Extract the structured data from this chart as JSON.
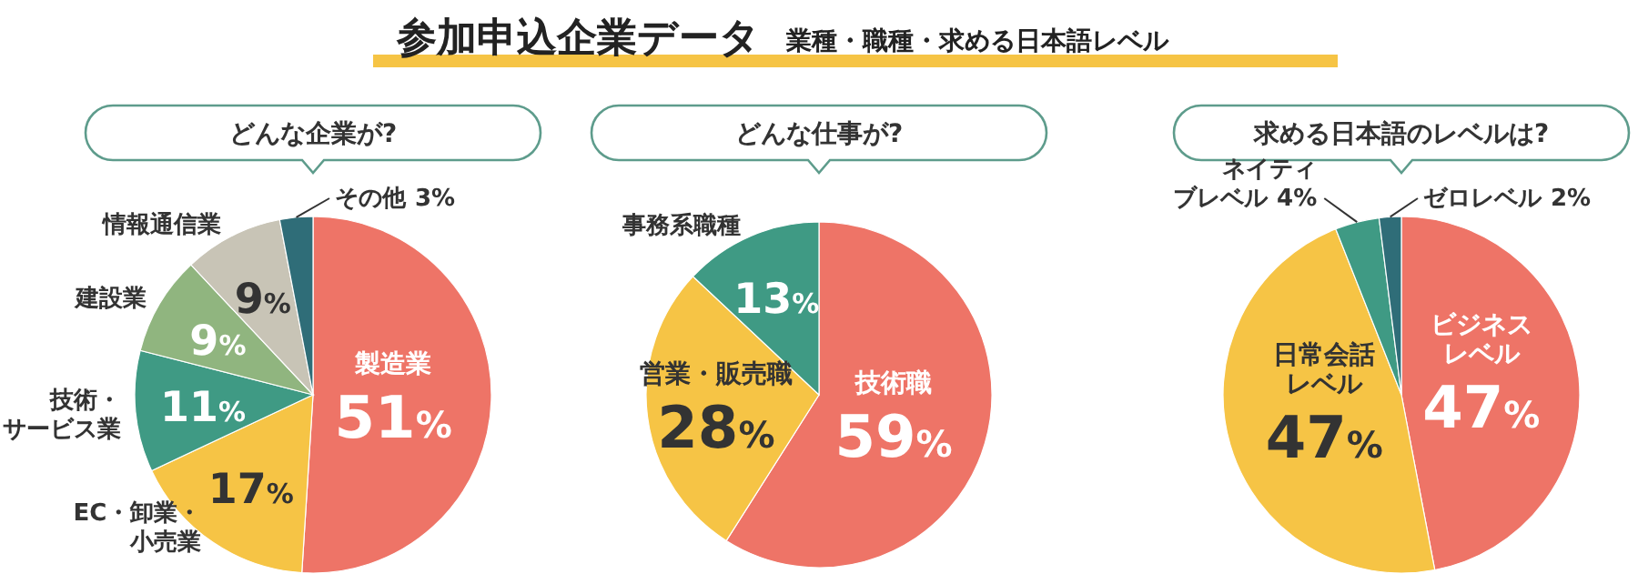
{
  "chart_data": [
    {
      "type": "other",
      "title": "参加申込企業データ",
      "subtitle": "業種・職種・求める日本語レベル"
    },
    {
      "type": "pie",
      "title": "どんな企業が?",
      "categories": [
        "製造業",
        "EC・卸業・小売業",
        "技術・サービス業",
        "建設業",
        "情報通信業",
        "その他"
      ],
      "values": [
        51,
        17,
        11,
        9,
        9,
        3
      ],
      "colors": [
        "#ee7467",
        "#f6c445",
        "#3f9a84",
        "#90b57f",
        "#c8c4b6",
        "#2f6d78"
      ],
      "value_labels": [
        "51%",
        "17%",
        "11%",
        "9%",
        "9%",
        "3%"
      ]
    },
    {
      "type": "pie",
      "title": "どんな仕事が?",
      "categories": [
        "技術職",
        "営業・販売職",
        "事務系職種"
      ],
      "values": [
        59,
        28,
        13
      ],
      "colors": [
        "#ee7467",
        "#f6c445",
        "#3f9a84"
      ],
      "value_labels": [
        "59%",
        "28%",
        "13%"
      ]
    },
    {
      "type": "pie",
      "title": "求める日本語のレベルは?",
      "categories": [
        "ビジネスレベル",
        "日常会話レベル",
        "ネイティブレベル",
        "ゼロレベル"
      ],
      "values": [
        47,
        47,
        4,
        2
      ],
      "colors": [
        "#ee7467",
        "#f6c445",
        "#3f9a84",
        "#2f6d78"
      ],
      "value_labels": [
        "47%",
        "47%",
        "4%",
        "2%"
      ]
    }
  ]
}
